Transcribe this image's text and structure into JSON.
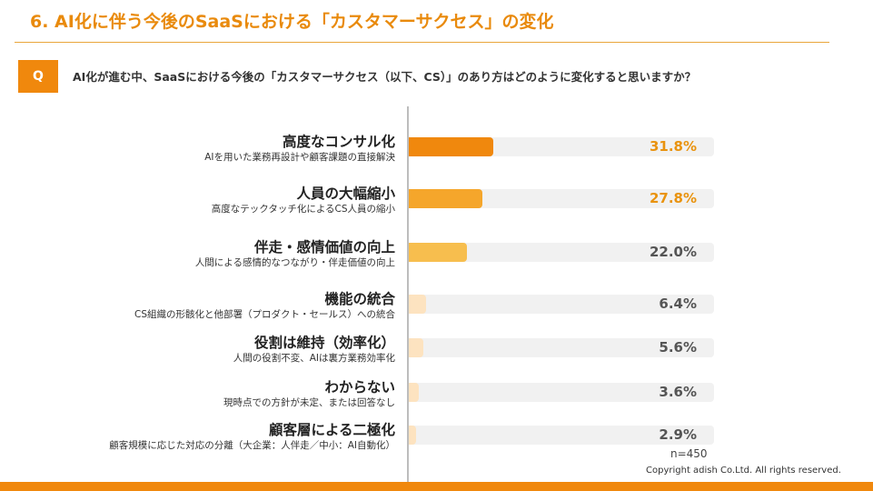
{
  "header": {
    "title": "6. AI化に伴う今後のSaaSにおける「カスタマーサクセス」の変化",
    "q_badge": "Q",
    "question": "AI化が進む中、SaaSにおける今後の「カスタマーサクセス（以下、CS）」のあり方はどのように変化すると思いますか？"
  },
  "chart_data": {
    "type": "bar",
    "orientation": "horizontal",
    "categories": [
      {
        "label": "高度なコンサル化",
        "sublabel": "AIを用いた業務再設計や顧客課題の直接解決"
      },
      {
        "label": "人員の大幅縮小",
        "sublabel": "高度なテックタッチ化によるCS人員の縮小"
      },
      {
        "label": "伴走・感情価値の向上",
        "sublabel": "人間による感情的なつながり・伴走価値の向上"
      },
      {
        "label": "機能の統合",
        "sublabel": "CS組織の形骸化と他部署（プロダクト・セールス）への統合"
      },
      {
        "label": "役割は維持（効率化）",
        "sublabel": "人間の役割不変、AIは裏方業務効率化"
      },
      {
        "label": "わからない",
        "sublabel": "現時点での方針が未定、または回答なし"
      },
      {
        "label": "顧客層による二極化",
        "sublabel": "顧客規模に応じた対応の分離（大企業：人伴走／中小：AI自動化）"
      }
    ],
    "values": [
      31.8,
      27.8,
      22.0,
      6.4,
      5.6,
      3.6,
      2.9
    ],
    "value_labels": [
      "31.8%",
      "27.8%",
      "22.0%",
      "6.4%",
      "5.6%",
      "3.6%",
      "2.9%"
    ],
    "bar_colors": [
      "#F0880D",
      "#F5A62B",
      "#F7BE4E",
      "#FDE3C0",
      "#FDE3C0",
      "#FDE3C0",
      "#FDE3C0"
    ],
    "highlight_color": "#E9930F",
    "xlim": [
      0,
      100
    ],
    "grid": false
  },
  "sample_size": "n=450",
  "copyright": "Copyright adish Co.Ltd. All rights reserved."
}
